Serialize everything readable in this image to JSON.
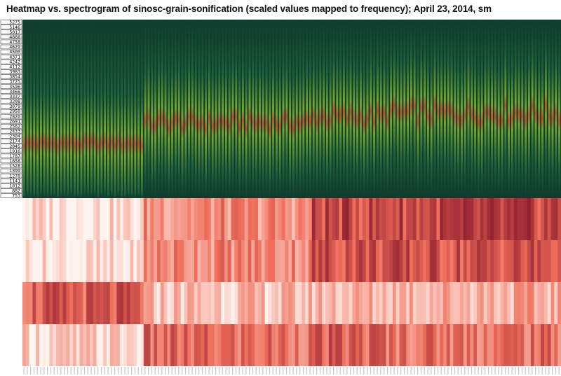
{
  "title": "Heatmap vs. spectrogram of sinosc-grain-sonification (scaled values mapped to frequency); April 23, 2014, sm",
  "chart_data": [
    {
      "type": "spectrogram",
      "ylabels": [
        "5275",
        "5146",
        "5017",
        "4888",
        "4758",
        "4629",
        "4500",
        "4371",
        "4242",
        "4112",
        "3983",
        "3854",
        "3725",
        "3596",
        "3466",
        "3337",
        "3208",
        "3079",
        "2950",
        "2820",
        "2691",
        "2562",
        "2433",
        "2304",
        "2174",
        "2045",
        "1916",
        "1787",
        "1658",
        "1528",
        "1399",
        "1270",
        "1141",
        "1012",
        "882",
        "753"
      ],
      "ylim": [
        753,
        5275
      ],
      "num_frames": 160,
      "segments": [
        {
          "from": 0,
          "to": 36,
          "center_freq": 2110,
          "amplitude": 70
        },
        {
          "from": 36,
          "to": 86,
          "center_freq": 2650,
          "amplitude": 170
        },
        {
          "from": 86,
          "to": 108,
          "center_freq": 2800,
          "amplitude": 200
        },
        {
          "from": 108,
          "to": 160,
          "center_freq": 2900,
          "amplitude": 230
        }
      ],
      "background_color": "#0f3a2e",
      "peak_color": "#c0552c"
    },
    {
      "type": "heatmap",
      "num_columns": 160,
      "num_rows": 4,
      "row_labels": [
        "",
        "",
        "",
        ""
      ],
      "segments": [
        {
          "from": 0,
          "to": 36,
          "level": [
            0.08,
            0.06,
            0.62,
            0.14
          ]
        },
        {
          "from": 36,
          "to": 86,
          "level": [
            0.42,
            0.45,
            0.22,
            0.55
          ]
        },
        {
          "from": 86,
          "to": 108,
          "level": [
            0.72,
            0.7,
            0.26,
            0.6
          ]
        },
        {
          "from": 108,
          "to": 160,
          "level": [
            0.74,
            0.68,
            0.3,
            0.55
          ]
        }
      ],
      "color_low": "#fff4ef",
      "color_high": "#85152a"
    }
  ]
}
